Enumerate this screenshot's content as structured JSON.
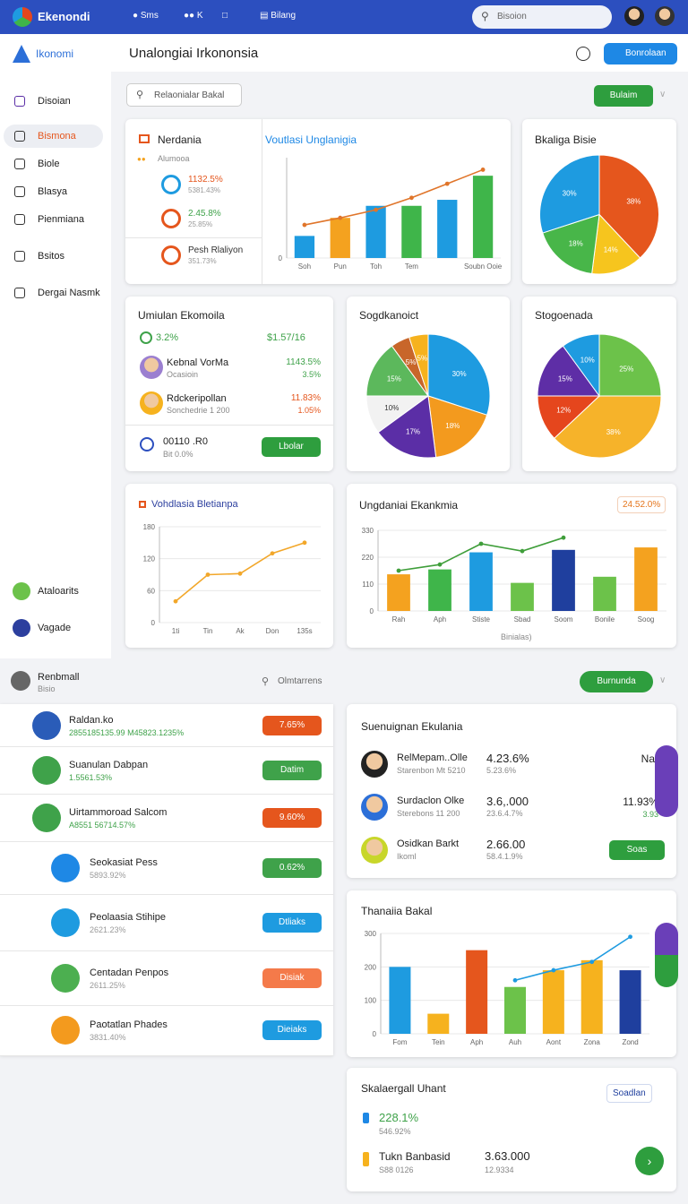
{
  "topbar": {
    "brand": "Ekenondi",
    "nav": [
      "Sms",
      "K",
      "Bilang"
    ],
    "search": "Bisoion"
  },
  "header": {
    "logo": "Ikonomi",
    "title": "Unalongiai Irkononsia",
    "button": "Bonrolaan"
  },
  "sidebar": {
    "items": [
      "Disoian",
      "Bismona",
      "Biole",
      "Blasya",
      "Pienmiana",
      "Bsitos",
      "Dergai Nasmk"
    ],
    "footer": [
      "Ataloarits",
      "Vagade"
    ]
  },
  "toolbar": {
    "search": "Relaonialar Bakal",
    "button": "Bulaim"
  },
  "summary": {
    "title": "Nerdania",
    "subtitle": "Alumooa",
    "items": [
      {
        "value": "1132.5%",
        "sub": "5381.43%",
        "color": "#e5561d"
      },
      {
        "value": "2.45.8%",
        "sub": "25.85%",
        "color": "#3fa24a"
      },
      {
        "value": "Pesh Rlaliyon",
        "sub": "351.73%",
        "color": "#333333"
      }
    ]
  },
  "economy": {
    "title": "Umiulan Ekomoila",
    "change": "3.2%",
    "amount": "$1.57/16",
    "people": [
      {
        "name": "Kebnal VorMa",
        "role": "Ocasioin",
        "value": "1143.5%",
        "sub": "3.5%",
        "color": "#3fa24a"
      },
      {
        "name": "Rdckeripollan",
        "role": "Sonchedrie 1 200",
        "value": "11.83%",
        "sub": "1.05%",
        "color": "#e5561d"
      }
    ],
    "footer": {
      "value": "00110 .R0",
      "sub": "Bit 0.0%",
      "button": "Lbolar"
    }
  },
  "charts": [
    {
      "type": "bar_line",
      "title": "Voutlasi Unglanigia",
      "categories": [
        "Soh",
        "Pun",
        "Toh",
        "Tem",
        null,
        "Soubn Ooie"
      ],
      "bars": {
        "values": [
          22,
          40,
          52,
          52,
          58,
          82
        ],
        "colors": [
          "#1e9be0",
          "#f4a21f",
          "#1e9be0",
          "#3fb54a",
          "#1e9be0",
          "#3fb54a"
        ]
      },
      "line": {
        "values": [
          33,
          40,
          48,
          60,
          74,
          88
        ],
        "color": "#e0752a"
      },
      "ylim": [
        0,
        100
      ],
      "yticks": [
        0
      ]
    },
    {
      "type": "pie",
      "title": "Bkaliga Bisie",
      "values": [
        38,
        14,
        18,
        30
      ],
      "value_labels": [
        "38%",
        "14%",
        "18%",
        "30%"
      ],
      "colors": [
        "#e5561d",
        "#f6c51e",
        "#48b649",
        "#1e9be0"
      ]
    },
    {
      "type": "pie",
      "title": "Sogdkanoict",
      "values": [
        30,
        18,
        17,
        10,
        15,
        5,
        5
      ],
      "value_labels": [
        "30%",
        "18%",
        "17%",
        "10%",
        "15%",
        "5%",
        "5%"
      ],
      "colors": [
        "#1e9be0",
        "#f39a1e",
        "#5b2ea6",
        "#f2f2f2",
        "#5cb85c",
        "#c8662a",
        "#f6b21e"
      ]
    },
    {
      "type": "pie",
      "title": "Stogoenada",
      "values": [
        25,
        38,
        12,
        15,
        10
      ],
      "value_labels": [
        "25%",
        "38%",
        "12%",
        "15%",
        "10%"
      ],
      "colors": [
        "#6cc24a",
        "#f6b32a",
        "#e5461d",
        "#5e2ea6",
        "#1e9be0"
      ]
    },
    {
      "type": "line",
      "title": "Vohdlasia Bletianpa",
      "categories": [
        "1ti",
        "Tin",
        "Ak",
        "Don",
        "135s"
      ],
      "values": [
        40,
        90,
        92,
        130,
        150
      ],
      "color": "#f2a72a",
      "ylim": [
        0,
        180
      ],
      "yticks": [
        0,
        60,
        120,
        180
      ]
    },
    {
      "type": "bar_line",
      "title": "Ungdaniai Ekankmia",
      "badge": "24.52.0%",
      "xlabel": "Binialas)",
      "categories": [
        "Rah",
        "Aph",
        "Stiste",
        "Sbad",
        "Soom",
        "Bonile",
        "Soog"
      ],
      "bars": {
        "values": [
          150,
          170,
          240,
          115,
          250,
          140,
          260
        ],
        "colors": [
          "#f4a21f",
          "#3fb54a",
          "#1e9be0",
          "#6cc24a",
          "#1f3f9e",
          "#6cc24a",
          "#f4a21f"
        ]
      },
      "line": {
        "values": [
          165,
          190,
          275,
          245,
          300,
          null,
          null
        ],
        "color": "#3f9e3a"
      },
      "ylim": [
        0,
        330
      ],
      "yticks": [
        0,
        110,
        220,
        330
      ]
    },
    {
      "type": "bar_line",
      "title": "Thanaiia Bakal",
      "categories": [
        "Fom",
        "Tein",
        "Aph",
        "Auh",
        "Aont",
        "Zona",
        "Zond"
      ],
      "bars": {
        "values": [
          200,
          60,
          250,
          140,
          190,
          220,
          190
        ],
        "colors": [
          "#1e9be0",
          "#f6b21e",
          "#e5561d",
          "#6cc24a",
          "#f6b21e",
          "#f6b21e",
          "#1f3f9e"
        ]
      },
      "line": {
        "values": [
          null,
          null,
          null,
          160,
          190,
          215,
          290
        ],
        "color": "#1e9be0"
      },
      "ylim": [
        0,
        300
      ],
      "yticks": [
        0,
        100,
        200,
        300
      ]
    }
  ],
  "section": {
    "title": "Renbmall",
    "subtitle": "Bisio",
    "search": "Olmtarrens",
    "button": "Burnunda"
  },
  "list": [
    {
      "title": "Raldan.ko",
      "sub": "2855185135.99 M45823.1235%",
      "button": "7.65%",
      "color": "#e5561d"
    },
    {
      "title": "Suanulan Dabpan",
      "sub": "1.5561.53%",
      "button": "Datim",
      "color": "#3fa24a"
    },
    {
      "title": "Uirtammoroad Salcom",
      "sub": "A8551 56714.57%",
      "button": "9.60%",
      "color": "#e5561d"
    },
    {
      "title": "Seokasiat Pess",
      "sub": "5893.92%",
      "button": "0.62%",
      "color": "#3fa24a"
    },
    {
      "title": "Peolaasia Stihipe",
      "sub": "2621.23%",
      "button": "Dtliaks",
      "color": "#1e9be0"
    },
    {
      "title": "Centadan Penpos",
      "sub": "2611.25%",
      "button": "Disiak",
      "color": "#f47a4a"
    },
    {
      "title": "Paotatlan Phades",
      "sub": "3831.40%",
      "button": "Dieiaks",
      "color": "#1e9be0"
    }
  ],
  "contacts": {
    "title": "Suenuignan Ekulania",
    "rows": [
      {
        "name": "RelMepam..Olle",
        "role": "Starenbon Mt 5210",
        "value": "4.23.6%",
        "sub": "5.23.6%",
        "extra": "Nar"
      },
      {
        "name": "Surdaclon Olke",
        "role": "Sterebons 11 200",
        "value": "3.6,.000",
        "sub": "23.6.4.7%",
        "extra": "11.93%",
        "extra_sub": "3.93"
      },
      {
        "name": "Osidkan Barkt",
        "role": "Ikoml",
        "value": "2.66.00",
        "sub": "58.4.1.9%",
        "button": "Soas"
      }
    ]
  },
  "status": {
    "title": "Skalaergall Uhant",
    "badge": "Soadlan",
    "rows": [
      {
        "value": "228.1%",
        "sub": "546.92%"
      },
      {
        "value": "Tukn Banbasid",
        "sub": "S88 0126",
        "amount": "3.63.000",
        "amount_sub": "12.9334"
      }
    ]
  }
}
